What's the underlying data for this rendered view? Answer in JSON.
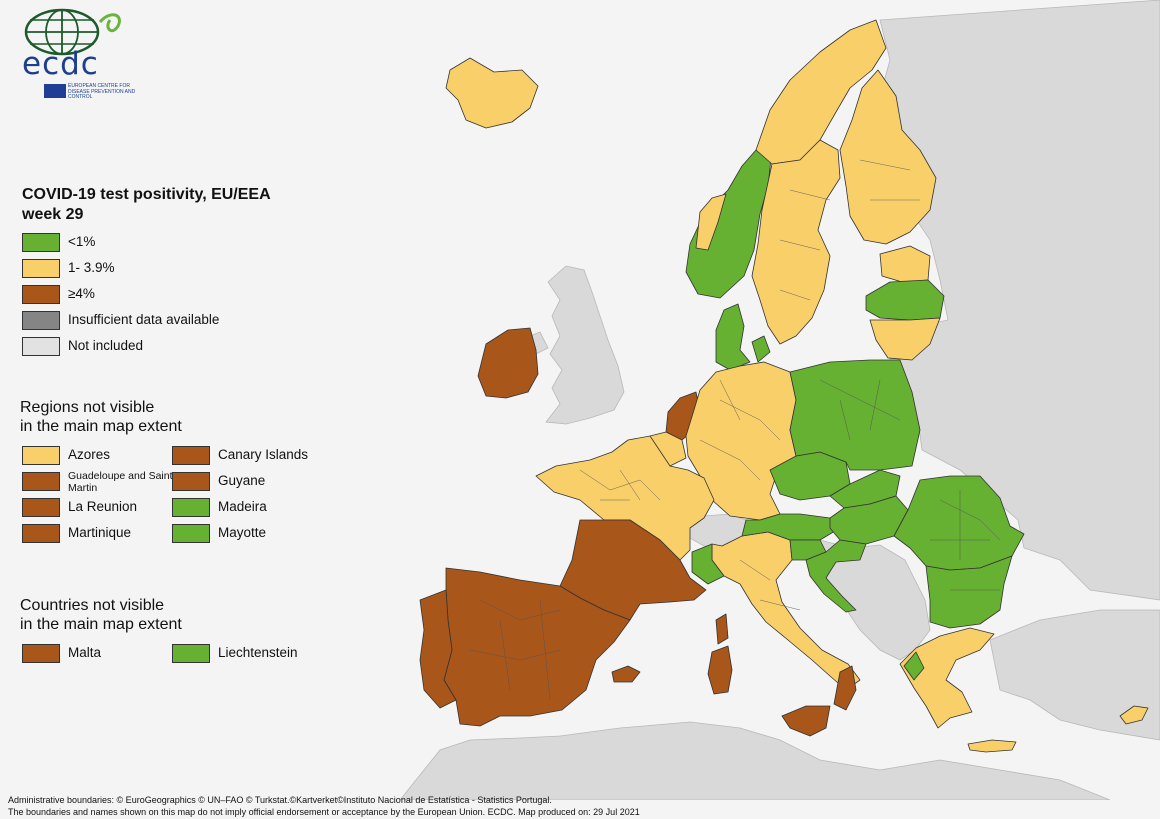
{
  "logo": {
    "text": "ecdc",
    "subtitle": "EUROPEAN CENTRE FOR DISEASE PREVENTION AND CONTROL"
  },
  "title": {
    "line1": "COVID-19 test positivity, EU/EEA",
    "line2": "week 29"
  },
  "colors": {
    "lt1": "#66b032",
    "mid": "#f9cf6a",
    "ge4": "#a8561a",
    "insufficient": "#858585",
    "not_included": "#e2e2e2",
    "context": "#d9d9d9",
    "sea": "#f4f4f4"
  },
  "legend": [
    {
      "key": "lt1",
      "label": "<1%"
    },
    {
      "key": "mid",
      "label": "1- 3.9%"
    },
    {
      "key": "ge4",
      "label": "≥4%"
    },
    {
      "key": "insufficient",
      "label": "Insufficient data available"
    },
    {
      "key": "not_included",
      "label": "Not included"
    }
  ],
  "regions_section": {
    "title_line1": "Regions not visible",
    "title_line2": "in the main map extent",
    "left": [
      {
        "key": "mid",
        "label": "Azores"
      },
      {
        "key": "ge4",
        "label": "Guadeloupe and Saint Martin"
      },
      {
        "key": "ge4",
        "label": "La Reunion"
      },
      {
        "key": "ge4",
        "label": "Martinique"
      }
    ],
    "right": [
      {
        "key": "ge4",
        "label": "Canary Islands"
      },
      {
        "key": "ge4",
        "label": "Guyane"
      },
      {
        "key": "lt1",
        "label": "Madeira"
      },
      {
        "key": "lt1",
        "label": "Mayotte"
      }
    ]
  },
  "countries_section": {
    "title_line1": "Countries not visible",
    "title_line2": "in the main map extent",
    "items": [
      {
        "key": "ge4",
        "label": "Malta"
      },
      {
        "key": "lt1",
        "label": "Liechtenstein"
      }
    ]
  },
  "footer": {
    "line1": "Administrative boundaries: © EuroGeographics © UN–FAO © Turkstat.©Kartverket©Instituto Nacional de Estatística - Statistics Portugal.",
    "line2": "The boundaries and names shown on this map do not imply official endorsement or acceptance by the European Union. ECDC. Map produced on: 29 Jul 2021"
  },
  "map": {
    "countries": [
      {
        "name": "Iceland",
        "key": "mid"
      },
      {
        "name": "Norway",
        "key": "lt1"
      },
      {
        "name": "Sweden",
        "key": "mid"
      },
      {
        "name": "Finland",
        "key": "mid"
      },
      {
        "name": "Estonia",
        "key": "mid"
      },
      {
        "name": "Latvia",
        "key": "lt1"
      },
      {
        "name": "Lithuania",
        "key": "mid"
      },
      {
        "name": "Denmark",
        "key": "lt1"
      },
      {
        "name": "Ireland",
        "key": "ge4"
      },
      {
        "name": "Netherlands",
        "key": "ge4"
      },
      {
        "name": "Belgium",
        "key": "mid"
      },
      {
        "name": "Luxembourg",
        "key": "mid"
      },
      {
        "name": "Germany",
        "key": "mid"
      },
      {
        "name": "France",
        "key": "mid"
      },
      {
        "name": "Occitanie",
        "key": "ge4"
      },
      {
        "name": "Spain",
        "key": "ge4"
      },
      {
        "name": "Portugal",
        "key": "ge4"
      },
      {
        "name": "Switzerland",
        "key": "not_included"
      },
      {
        "name": "Austria",
        "key": "lt1"
      },
      {
        "name": "Italy",
        "key": "mid"
      },
      {
        "name": "Valle d'Aosta",
        "key": "lt1"
      },
      {
        "name": "Sardinia",
        "key": "ge4"
      },
      {
        "name": "Corsica",
        "key": "ge4"
      },
      {
        "name": "Sicily",
        "key": "ge4"
      },
      {
        "name": "Calabria",
        "key": "ge4"
      },
      {
        "name": "Poland",
        "key": "lt1"
      },
      {
        "name": "Czechia",
        "key": "lt1"
      },
      {
        "name": "Slovakia",
        "key": "lt1"
      },
      {
        "name": "Hungary",
        "key": "lt1"
      },
      {
        "name": "Slovenia",
        "key": "lt1"
      },
      {
        "name": "Croatia",
        "key": "lt1"
      },
      {
        "name": "Romania",
        "key": "lt1"
      },
      {
        "name": "Bulgaria",
        "key": "lt1"
      },
      {
        "name": "Greece",
        "key": "mid"
      },
      {
        "name": "Western Macedonia",
        "key": "lt1"
      },
      {
        "name": "Cyprus",
        "key": "mid"
      },
      {
        "name": "Balearic Islands",
        "key": "ge4"
      }
    ]
  }
}
